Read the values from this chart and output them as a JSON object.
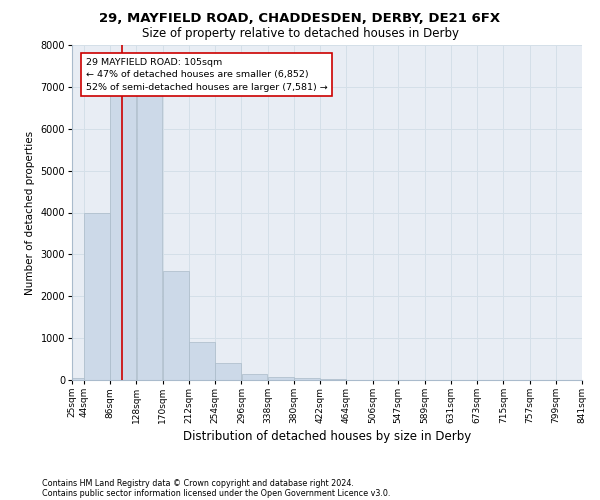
{
  "title1": "29, MAYFIELD ROAD, CHADDESDEN, DERBY, DE21 6FX",
  "title2": "Size of property relative to detached houses in Derby",
  "xlabel": "Distribution of detached houses by size in Derby",
  "ylabel": "Number of detached properties",
  "footnote1": "Contains HM Land Registry data © Crown copyright and database right 2024.",
  "footnote2": "Contains public sector information licensed under the Open Government Licence v3.0.",
  "bar_edges": [
    25,
    44,
    86,
    128,
    170,
    212,
    254,
    296,
    338,
    380,
    422,
    464,
    506,
    547,
    589,
    631,
    673,
    715,
    757,
    799,
    841
  ],
  "bar_heights": [
    50,
    4000,
    6852,
    6852,
    2600,
    900,
    400,
    150,
    80,
    40,
    15,
    8,
    4,
    2,
    1,
    1,
    0,
    0,
    0,
    0
  ],
  "bar_color": "#ccd9e8",
  "bar_edgecolor": "#aabbc8",
  "tick_labels": [
    "25sqm",
    "44sqm",
    "86sqm",
    "128sqm",
    "170sqm",
    "212sqm",
    "254sqm",
    "296sqm",
    "338sqm",
    "380sqm",
    "422sqm",
    "464sqm",
    "506sqm",
    "547sqm",
    "589sqm",
    "631sqm",
    "673sqm",
    "715sqm",
    "757sqm",
    "799sqm",
    "841sqm"
  ],
  "ylim": [
    0,
    8000
  ],
  "yticks": [
    0,
    1000,
    2000,
    3000,
    4000,
    5000,
    6000,
    7000,
    8000
  ],
  "property_line_x": 105,
  "property_line_color": "#cc0000",
  "annotation_text": "29 MAYFIELD ROAD: 105sqm\n← 47% of detached houses are smaller (6,852)\n52% of semi-detached houses are larger (7,581) →",
  "annotation_box_color": "#cc0000",
  "grid_color": "#d4dfe8",
  "background_color": "#e8edf4",
  "title1_fontsize": 9.5,
  "title2_fontsize": 8.5,
  "xlabel_fontsize": 8.5,
  "ylabel_fontsize": 7.5,
  "tick_fontsize": 6.5,
  "annot_fontsize": 6.8
}
